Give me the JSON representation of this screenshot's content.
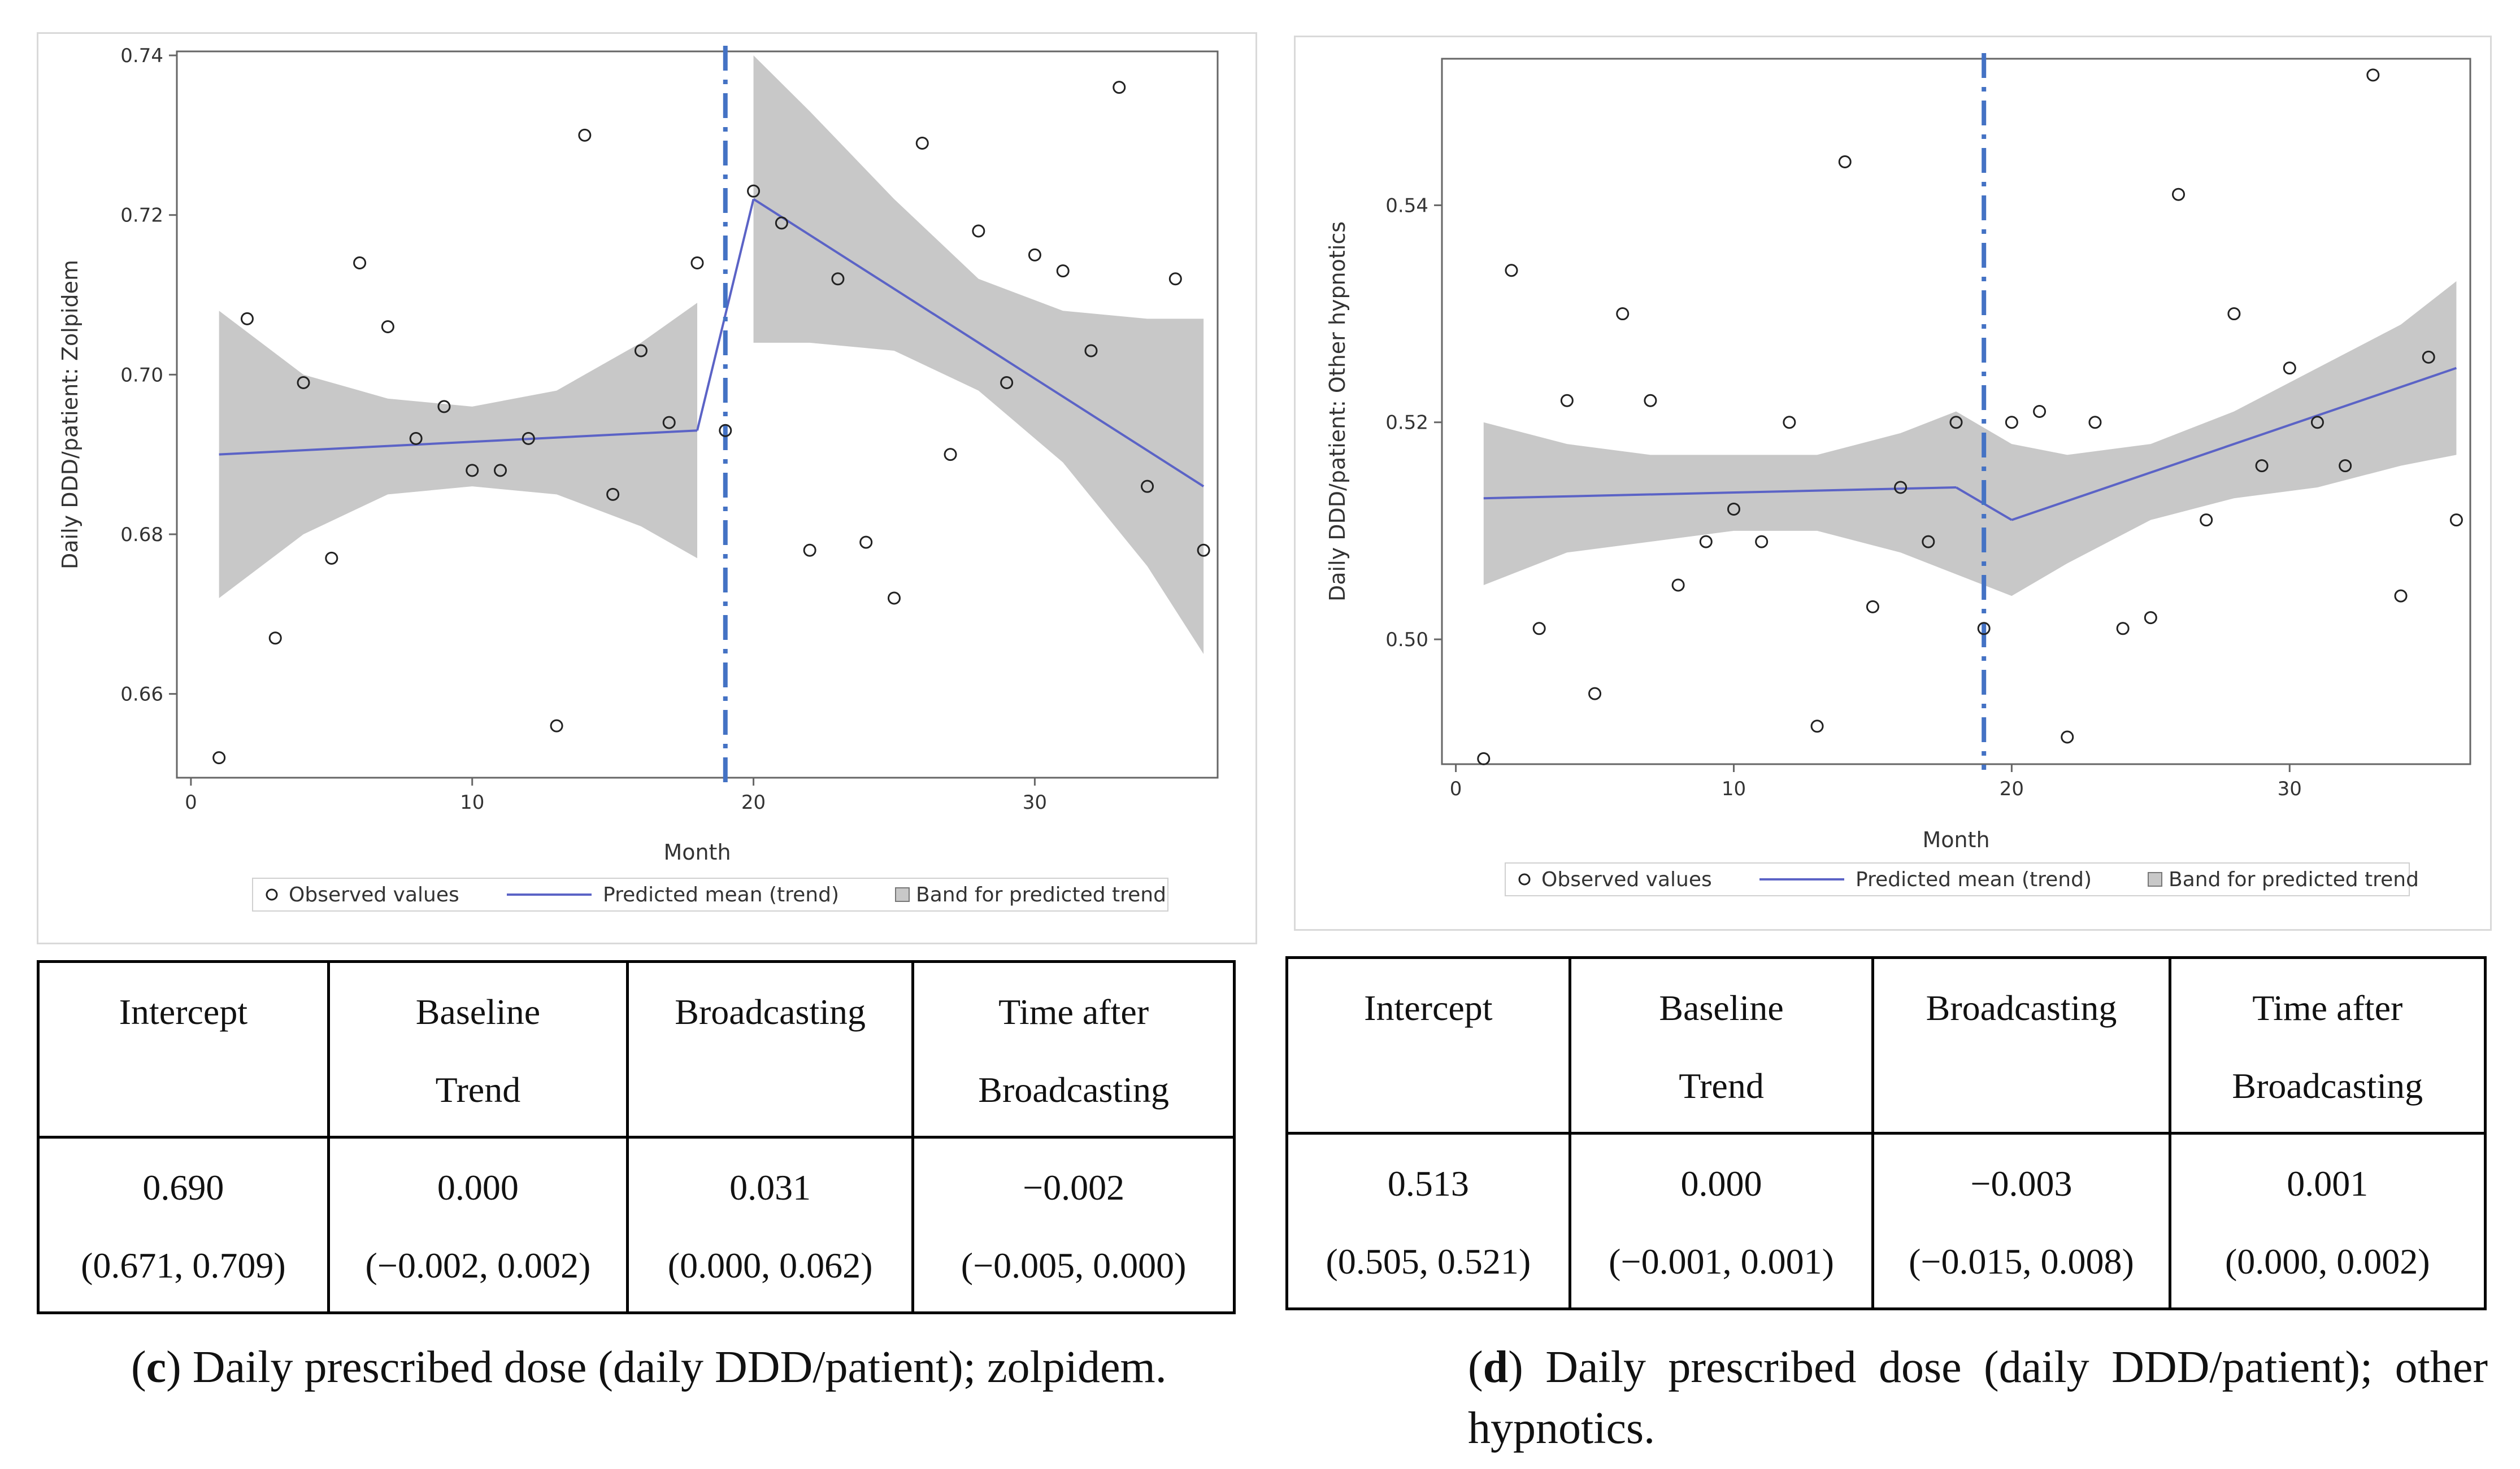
{
  "chart_data": [
    {
      "type": "scatter",
      "id": "c",
      "ylabel": "Daily DDD/patient: Zolpidem",
      "xlabel": "Month",
      "xlim": [
        -0.5,
        36.5
      ],
      "ylim": [
        0.6495,
        0.7405
      ],
      "xticks": [
        0,
        10,
        20,
        30
      ],
      "yticks": [
        0.66,
        0.68,
        0.7,
        0.72,
        0.74
      ],
      "ytick_labels": [
        "0.66",
        "0.68",
        "0.70",
        "0.72",
        "0.74"
      ],
      "intervention_month": 19,
      "observed": {
        "name": "Observed values",
        "x": [
          1,
          2,
          3,
          4,
          5,
          6,
          7,
          8,
          9,
          10,
          11,
          12,
          13,
          14,
          15,
          16,
          17,
          18,
          19,
          20,
          21,
          22,
          23,
          24,
          25,
          26,
          27,
          28,
          29,
          30,
          31,
          32,
          33,
          34,
          35,
          36
        ],
        "y": [
          0.652,
          0.707,
          0.667,
          0.699,
          0.677,
          0.714,
          0.706,
          0.692,
          0.696,
          0.688,
          0.688,
          0.692,
          0.656,
          0.73,
          0.685,
          0.703,
          0.694,
          0.714,
          0.693,
          0.723,
          0.719,
          0.678,
          0.712,
          0.679,
          0.672,
          0.729,
          0.69,
          0.718,
          0.699,
          0.715,
          0.713,
          0.703,
          0.736,
          0.686,
          0.712,
          0.678
        ]
      },
      "trend": {
        "name": "Predicted mean (trend)",
        "segments": [
          {
            "x": [
              1,
              18
            ],
            "y": [
              0.69,
              0.693
            ]
          },
          {
            "x": [
              20,
              36
            ],
            "y": [
              0.722,
              0.686
            ]
          }
        ]
      },
      "band": {
        "name": "Band for predicted trend",
        "segments": [
          {
            "x": [
              1,
              4,
              7,
              10,
              13,
              16,
              18
            ],
            "lower": [
              0.672,
              0.68,
              0.685,
              0.686,
              0.685,
              0.681,
              0.677
            ],
            "upper": [
              0.708,
              0.7,
              0.697,
              0.696,
              0.698,
              0.704,
              0.709
            ]
          },
          {
            "x": [
              20,
              22,
              25,
              28,
              31,
              34,
              36
            ],
            "lower": [
              0.704,
              0.704,
              0.703,
              0.698,
              0.689,
              0.676,
              0.665
            ],
            "upper": [
              0.74,
              0.733,
              0.722,
              0.712,
              0.708,
              0.707,
              0.707
            ]
          }
        ]
      },
      "legend": [
        "Observed values",
        "Predicted mean (trend)",
        "Band for predicted trend"
      ]
    },
    {
      "type": "scatter",
      "id": "d",
      "ylabel": "Daily DDD/patient: Other hypnotics",
      "xlabel": "Month",
      "xlim": [
        -0.5,
        36.5
      ],
      "ylim": [
        0.4885,
        0.5535
      ],
      "xticks": [
        0,
        10,
        20,
        30
      ],
      "yticks": [
        0.5,
        0.52,
        0.54
      ],
      "ytick_labels": [
        "0.50",
        "0.52",
        "0.54"
      ],
      "intervention_month": 19,
      "observed": {
        "name": "Observed values",
        "x": [
          1,
          2,
          3,
          4,
          5,
          6,
          7,
          8,
          9,
          10,
          11,
          12,
          13,
          14,
          15,
          16,
          17,
          18,
          19,
          20,
          21,
          22,
          23,
          24,
          25,
          26,
          27,
          28,
          29,
          30,
          31,
          32,
          33,
          34,
          35,
          36
        ],
        "y": [
          0.489,
          0.534,
          0.501,
          0.522,
          0.495,
          0.53,
          0.522,
          0.505,
          0.509,
          0.512,
          0.509,
          0.52,
          0.492,
          0.544,
          0.503,
          0.514,
          0.509,
          0.52,
          0.501,
          0.52,
          0.521,
          0.491,
          0.52,
          0.501,
          0.502,
          0.541,
          0.511,
          0.53,
          0.516,
          0.525,
          0.52,
          0.516,
          0.552,
          0.504,
          0.526,
          0.511
        ]
      },
      "trend": {
        "name": "Predicted mean (trend)",
        "segments": [
          {
            "x": [
              1,
              18
            ],
            "y": [
              0.513,
              0.514
            ]
          },
          {
            "x": [
              20,
              36
            ],
            "y": [
              0.511,
              0.525
            ]
          }
        ]
      },
      "band": {
        "name": "Band for predicted trend",
        "segments": [
          {
            "x": [
              1,
              4,
              7,
              10,
              13,
              16,
              18,
              20,
              22,
              25,
              28,
              31,
              34,
              36
            ],
            "lower": [
              0.505,
              0.508,
              0.509,
              0.51,
              0.51,
              0.508,
              0.506,
              0.504,
              0.507,
              0.511,
              0.513,
              0.514,
              0.516,
              0.517
            ],
            "upper": [
              0.52,
              0.518,
              0.517,
              0.517,
              0.517,
              0.519,
              0.521,
              0.518,
              0.517,
              0.518,
              0.521,
              0.525,
              0.529,
              0.533
            ]
          }
        ]
      },
      "legend": [
        "Observed values",
        "Predicted mean (trend)",
        "Band for predicted trend"
      ]
    }
  ],
  "tables": {
    "c": {
      "headers": [
        {
          "line1": "Intercept",
          "line2": ""
        },
        {
          "line1": "Baseline",
          "line2": "Trend"
        },
        {
          "line1": "Broadcasting",
          "line2": ""
        },
        {
          "line1": "Time after",
          "line2": "Broadcasting"
        }
      ],
      "values": [
        {
          "est": "0.690",
          "ci": "(0.671, 0.709)"
        },
        {
          "est": "0.000",
          "ci": "(−0.002, 0.002)"
        },
        {
          "est": "0.031",
          "ci": "(0.000, 0.062)"
        },
        {
          "est": "−0.002",
          "ci": "(−0.005, 0.000)"
        }
      ]
    },
    "d": {
      "headers": [
        {
          "line1": "Intercept",
          "line2": ""
        },
        {
          "line1": "Baseline",
          "line2": "Trend"
        },
        {
          "line1": "Broadcasting",
          "line2": ""
        },
        {
          "line1": "Time after",
          "line2": "Broadcasting"
        }
      ],
      "values": [
        {
          "est": "0.513",
          "ci": "(0.505, 0.521)"
        },
        {
          "est": "0.000",
          "ci": "(−0.001, 0.001)"
        },
        {
          "est": "−0.003",
          "ci": "(−0.015, 0.008)"
        },
        {
          "est": "0.001",
          "ci": "(0.000, 0.002)"
        }
      ]
    }
  },
  "captions": {
    "c": {
      "label": "c",
      "open": "(",
      "close": ")",
      "text": "Daily prescribed dose (daily DDD/patient); zolpidem."
    },
    "d": {
      "label": "d",
      "open": "(",
      "close": ")",
      "text": "Daily prescribed dose (daily DDD/patient); other hypnotics."
    }
  },
  "colors": {
    "trend": "#5b63c6",
    "band": "#c8c8c8",
    "vline": "#4472c4",
    "marker": "#222222",
    "axis": "#666666"
  }
}
